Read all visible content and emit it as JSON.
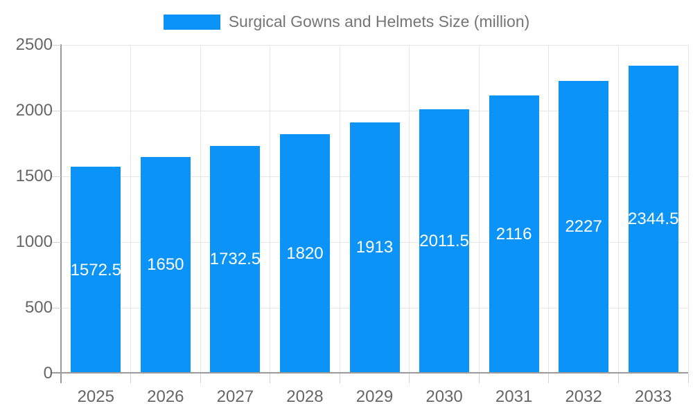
{
  "chart_data": {
    "type": "bar",
    "title": "Surgical Gowns and Helmets Size (million)",
    "categories": [
      "2025",
      "2026",
      "2027",
      "2028",
      "2029",
      "2030",
      "2031",
      "2032",
      "2033"
    ],
    "values": [
      1572.5,
      1650,
      1732.5,
      1820,
      1913,
      2011.5,
      2116,
      2227,
      2344.5
    ],
    "bar_value_labels": [
      "1572.5",
      "1650",
      "1732.5",
      "1820",
      "1913",
      "2011.5",
      "2116",
      "2227",
      "2344.5"
    ],
    "xlabel": "",
    "ylabel": "",
    "ylim": [
      0,
      2500
    ],
    "yticks": [
      0,
      500,
      1000,
      1500,
      2000,
      2500
    ],
    "grid": true,
    "legend_position": "top",
    "colors": {
      "bar": "#0b93f7",
      "value_label": "#ffffff",
      "axis_line": "#9a9a9a",
      "gridline": "#e6e6e6",
      "tick_mark": "#d4d4d4",
      "tick_label": "#666666",
      "legend_text": "#757575",
      "background": "#ffffff"
    }
  }
}
